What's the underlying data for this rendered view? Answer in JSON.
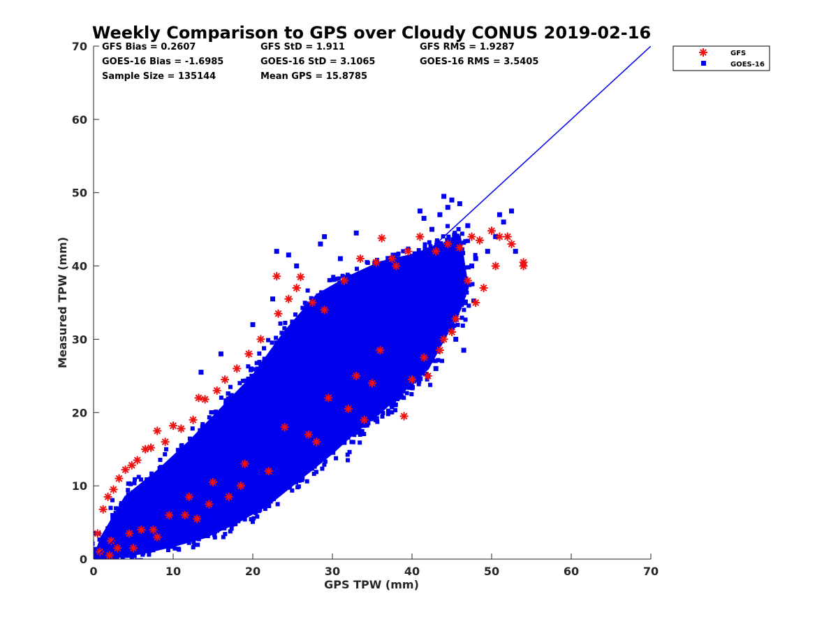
{
  "chart_data": {
    "type": "scatter",
    "title": "Weekly Comparison to GPS over Cloudy CONUS 2019-02-16",
    "xlabel": "GPS TPW (mm)",
    "ylabel": "Measured TPW (mm)",
    "xlim": [
      0,
      70
    ],
    "ylim": [
      0,
      70
    ],
    "xticks": [
      "0",
      "10",
      "20",
      "30",
      "40",
      "50",
      "60",
      "70"
    ],
    "yticks": [
      "0",
      "10",
      "20",
      "30",
      "40",
      "50",
      "60",
      "70"
    ],
    "grid": false,
    "legend_position": "outside-top-right",
    "stats": [
      "GFS Bias = 0.2607",
      "GFS StD = 1.911",
      "GFS RMS = 1.9287",
      "GOES-16 Bias = -1.6985",
      "GOES-16 StD = 3.1065",
      "GOES-16 RMS = 3.5405",
      "Sample Size = 135144",
      "Mean GPS = 15.8785"
    ],
    "reference_line": {
      "x": [
        0,
        70
      ],
      "y": [
        0,
        70
      ],
      "color": "#0000e6"
    },
    "series": [
      {
        "name": "GFS",
        "marker": "asterisk",
        "color": "#ee1111",
        "x": [
          0.5,
          1.2,
          1.8,
          2.5,
          3.2,
          4.0,
          4.8,
          5.5,
          6.5,
          7.2,
          8.0,
          9.0,
          10.0,
          11.0,
          12.5,
          13.2,
          14.0,
          15.5,
          16.5,
          18.0,
          19.5,
          21.0,
          23.0,
          23.2,
          24.5,
          25.5,
          26.0,
          27.5,
          29.0,
          31.5,
          33.5,
          35.5,
          36.2,
          37.5,
          38.0,
          39.5,
          41.0,
          43.0,
          44.5,
          46.0,
          47.5,
          48.5,
          50.0,
          51.0,
          52.0,
          54.0,
          3.0,
          6.0,
          9.5,
          12.0,
          15.0,
          19.0,
          24.0,
          29.5,
          33.0,
          36.0,
          41.5,
          43.5,
          45.5,
          47.0,
          50.5,
          52.5,
          54.0,
          2.0,
          5.0,
          8.0,
          13.0,
          17.0,
          22.0,
          27.0,
          32.0,
          35.0,
          39.0,
          42.0,
          44.0,
          48.0,
          0.8,
          2.2,
          4.5,
          7.5,
          11.5,
          14.5,
          18.5,
          28.0,
          34.0,
          40.0,
          45.0,
          49.0
        ],
        "y": [
          3.5,
          6.8,
          8.5,
          9.5,
          11.0,
          12.2,
          12.8,
          13.5,
          15.0,
          15.2,
          17.5,
          16.0,
          18.2,
          17.8,
          19.0,
          22.0,
          21.8,
          23.0,
          24.5,
          26.0,
          28.0,
          30.0,
          38.6,
          33.5,
          35.5,
          37.0,
          38.5,
          35.0,
          34.0,
          38.0,
          41.0,
          40.5,
          43.8,
          41.0,
          40.0,
          42.0,
          44.0,
          42.0,
          43.0,
          42.5,
          44.0,
          43.5,
          44.8,
          44.0,
          44.0,
          40.0,
          1.5,
          4.0,
          6.0,
          8.5,
          10.5,
          13.0,
          18.0,
          22.0,
          25.0,
          28.5,
          27.5,
          28.5,
          32.8,
          38.0,
          40.0,
          43.0,
          40.5,
          0.5,
          1.5,
          3.0,
          5.5,
          8.5,
          12.0,
          17.0,
          20.5,
          24.0,
          19.5,
          25.0,
          30.0,
          35.0,
          1.0,
          2.5,
          3.5,
          4.0,
          6.0,
          7.5,
          10.0,
          16.0,
          19.0,
          24.5,
          31.0,
          37.0
        ]
      },
      {
        "name": "GOES-16",
        "marker": "square",
        "color": "#0000ee",
        "band": {
          "x": [
            0,
            1,
            4,
            8,
            12,
            16,
            20,
            24,
            28,
            32,
            36,
            40,
            44,
            46,
            47,
            46,
            44,
            42,
            40,
            38,
            36,
            34,
            32,
            30,
            26,
            22,
            18,
            14,
            10,
            6,
            3,
            1,
            0
          ],
          "y": [
            0,
            3,
            8.5,
            12,
            16,
            20.5,
            25,
            31,
            36,
            38.5,
            40.5,
            41.5,
            43,
            44,
            37,
            34,
            30,
            26,
            24,
            22,
            20,
            18.5,
            16.5,
            14.5,
            11,
            7.5,
            5,
            3,
            1.8,
            0.8,
            0.3,
            0.1,
            0
          ]
        },
        "outliers_x": [
          41.0,
          41.5,
          42.5,
          43.5,
          44.0,
          44.5,
          45.0,
          46.0,
          47.0,
          47.5,
          48.0,
          49.5,
          50.5,
          51.0,
          51.5,
          52.5,
          53.0,
          43.0,
          40.5,
          38.0,
          36.0,
          33.5,
          31.5,
          29.5,
          27.5,
          26.0,
          25.0,
          23.5,
          22.0,
          20.5,
          19.0,
          17.0,
          15.5,
          14.0,
          12.5,
          11.0,
          9.5,
          8.0,
          6.5,
          5.0,
          3.5,
          2.0,
          39.0,
          37.0,
          35.0,
          30.5,
          28.0,
          24.0,
          21.0,
          18.0,
          44.0,
          45.5,
          46.5,
          42.0,
          40.0,
          36.5,
          34.5,
          32.5,
          30.0,
          27.0,
          26.5,
          25.5,
          24.5,
          23.0,
          28.5,
          31.0,
          33.0,
          29.0,
          20.0,
          22.5,
          16.0,
          13.5
        ],
        "outliers_y": [
          47.5,
          46.5,
          45.0,
          47.0,
          49.5,
          48.0,
          49.0,
          48.5,
          45.5,
          40.0,
          41.0,
          42.0,
          44.0,
          47.0,
          46.0,
          47.5,
          42.0,
          26.0,
          24.5,
          22.0,
          21.0,
          19.5,
          18.0,
          16.0,
          14.0,
          13.0,
          12.0,
          11.0,
          10.0,
          9.0,
          8.0,
          7.0,
          6.0,
          5.0,
          4.5,
          4.0,
          3.5,
          2.5,
          2.0,
          1.5,
          1.0,
          0.5,
          28.0,
          25.0,
          22.5,
          20.0,
          17.0,
          15.0,
          12.0,
          10.0,
          32.0,
          30.0,
          28.5,
          25.0,
          29.5,
          31.0,
          38.0,
          36.0,
          33.0,
          30.0,
          33.0,
          40.0,
          41.5,
          42.0,
          43.0,
          41.0,
          44.5,
          44.0,
          32.0,
          35.5,
          28.0,
          25.5
        ]
      }
    ]
  }
}
